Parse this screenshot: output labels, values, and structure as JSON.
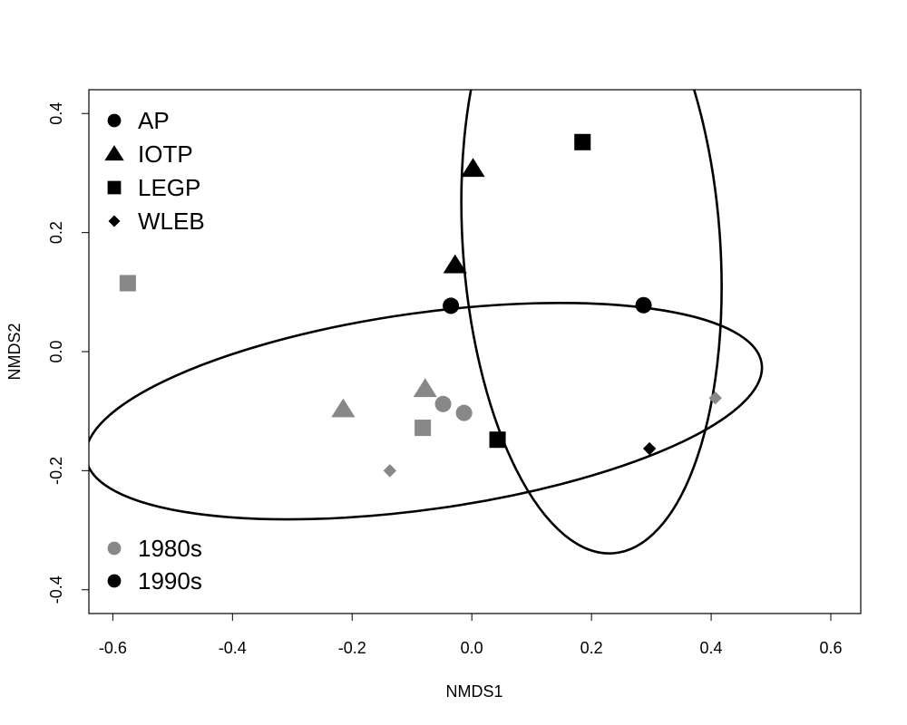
{
  "chart_data": {
    "type": "scatter",
    "title": "",
    "xlabel": "NMDS1",
    "ylabel": "NMDS2",
    "xlim": [
      -0.64,
      0.65
    ],
    "ylim": [
      -0.44,
      0.44
    ],
    "x_ticks": [
      -0.6,
      -0.4,
      -0.2,
      0.0,
      0.2,
      0.4,
      0.6
    ],
    "x_tick_labels": [
      "-0.6",
      "-0.4",
      "-0.2",
      "0.0",
      "0.2",
      "0.4",
      "0.6"
    ],
    "y_ticks": [
      -0.4,
      -0.2,
      0.0,
      0.2,
      0.4
    ],
    "y_tick_labels": [
      "-0.4",
      "-0.2",
      "0.0",
      "0.2",
      "0.4"
    ],
    "grid": false,
    "colors": {
      "1980s": "#888888",
      "1990s": "#000000"
    },
    "shape_legend": {
      "placement": "top-left",
      "entries": [
        {
          "label": "AP",
          "shape": "circle"
        },
        {
          "label": "IOTP",
          "shape": "triangle"
        },
        {
          "label": "LEGP",
          "shape": "square"
        },
        {
          "label": "WLEB",
          "shape": "diamond"
        }
      ]
    },
    "decade_legend": {
      "placement": "bottom-left",
      "entries": [
        {
          "label": "1980s",
          "color": "#888888"
        },
        {
          "label": "1990s",
          "color": "#000000"
        }
      ]
    },
    "points": [
      {
        "group": "LEGP",
        "decade": "1980s",
        "x": -0.575,
        "y": 0.115
      },
      {
        "group": "IOTP",
        "decade": "1980s",
        "x": -0.215,
        "y": -0.097
      },
      {
        "group": "IOTP",
        "decade": "1980s",
        "x": -0.078,
        "y": -0.063
      },
      {
        "group": "AP",
        "decade": "1980s",
        "x": -0.048,
        "y": -0.088
      },
      {
        "group": "AP",
        "decade": "1980s",
        "x": -0.013,
        "y": -0.103
      },
      {
        "group": "LEGP",
        "decade": "1980s",
        "x": -0.082,
        "y": -0.128
      },
      {
        "group": "WLEB",
        "decade": "1980s",
        "x": -0.137,
        "y": -0.2
      },
      {
        "group": "WLEB",
        "decade": "1980s",
        "x": 0.407,
        "y": -0.078
      },
      {
        "group": "AP",
        "decade": "1990s",
        "x": -0.035,
        "y": 0.077
      },
      {
        "group": "AP",
        "decade": "1990s",
        "x": 0.287,
        "y": 0.078
      },
      {
        "group": "IOTP",
        "decade": "1990s",
        "x": -0.028,
        "y": 0.145
      },
      {
        "group": "IOTP",
        "decade": "1990s",
        "x": 0.002,
        "y": 0.307
      },
      {
        "group": "LEGP",
        "decade": "1990s",
        "x": 0.185,
        "y": 0.352
      },
      {
        "group": "LEGP",
        "decade": "1990s",
        "x": 0.043,
        "y": -0.148
      },
      {
        "group": "WLEB",
        "decade": "1990s",
        "x": 0.297,
        "y": -0.163
      }
    ],
    "ellipses": [
      {
        "decade": "1980s",
        "center": [
          -0.08,
          -0.1
        ],
        "semi_axes": [
          0.57,
          0.165
        ],
        "angle_deg": -8
      },
      {
        "decade": "1990s",
        "center": [
          0.2,
          0.18
        ],
        "semi_axes": [
          0.215,
          0.52
        ],
        "angle_deg": -4
      }
    ]
  }
}
